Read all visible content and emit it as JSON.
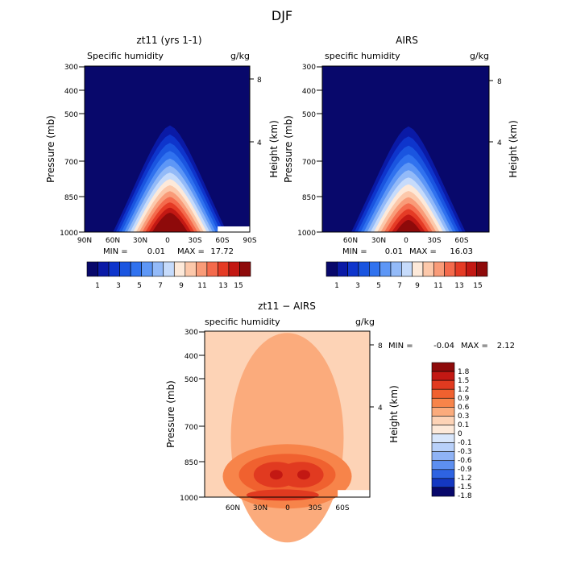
{
  "figure_title": "DJF",
  "minmax_labels": {
    "min": "MIN =",
    "max": "MAX ="
  },
  "chart_data": [
    {
      "type": "heatmap",
      "title": "zt11 (yrs 1-1)",
      "subtitle_left": "Specific humidity",
      "subtitle_right": "g/kg",
      "ylabel": "Pressure (mb)",
      "y2label": "Height (km)",
      "yticks": [
        "300",
        "400",
        "500",
        "700",
        "850",
        "1000"
      ],
      "y2ticks": [
        "8",
        "4"
      ],
      "xticks": [
        "90N",
        "60N",
        "30N",
        "0",
        "30S",
        "60S",
        "90S"
      ],
      "xlim": [
        90,
        -90
      ],
      "min": "0.01",
      "max": "17.72",
      "colorbar_labels": [
        "1",
        "3",
        "5",
        "7",
        "9",
        "11",
        "13",
        "15"
      ],
      "surface_mask": [
        [
          -55,
          960
        ],
        [
          -90,
          960
        ]
      ],
      "peak": 17.7
    },
    {
      "type": "heatmap",
      "title": "AIRS",
      "subtitle_left": "specific humidity",
      "subtitle_right": "g/kg",
      "ylabel": "Pressure (mb)",
      "y2label": "Height (km)",
      "yticks": [
        "300",
        "400",
        "500",
        "700",
        "850",
        "1000"
      ],
      "y2ticks": [
        "8",
        "4"
      ],
      "xticks": [
        "60N",
        "30N",
        "0",
        "30S",
        "60S"
      ],
      "xlim": [
        90,
        -90
      ],
      "min": "0.01",
      "max": "16.03",
      "colorbar_labels": [
        "1",
        "3",
        "5",
        "7",
        "9",
        "11",
        "13",
        "15"
      ],
      "peak": 16.0
    },
    {
      "type": "heatmap",
      "title": "zt11 − AIRS",
      "subtitle_left": "specific humidity",
      "subtitle_right": "g/kg",
      "ylabel": "Pressure (mb)",
      "y2label": "Height (km)",
      "yticks": [
        "300",
        "400",
        "500",
        "700",
        "850",
        "1000"
      ],
      "y2ticks": [
        "8",
        "4"
      ],
      "xticks": [
        "60N",
        "30N",
        "0",
        "30S",
        "60S"
      ],
      "xlim": [
        90,
        -90
      ],
      "min": "-0.04",
      "max": "2.12",
      "colorbar_labels": [
        "1.8",
        "1.5",
        "1.2",
        "0.9",
        "0.6",
        "0.3",
        "0.1",
        "0",
        "-0.1",
        "-0.3",
        "-0.6",
        "-0.9",
        "-1.2",
        "-1.5",
        "-1.8"
      ]
    }
  ],
  "colors": {
    "abs_scale": [
      "#08086b",
      "#0a1aa6",
      "#0e35cc",
      "#1a55e0",
      "#3072ef",
      "#5e97f6",
      "#93baf8",
      "#c6dbfb",
      "#fde9d9",
      "#fcc8aa",
      "#f99b78",
      "#f46a4c",
      "#e53b25",
      "#c31813",
      "#8e0a0a"
    ],
    "diff_scale": [
      "#8e0a0a",
      "#c31813",
      "#e13a20",
      "#f0612f",
      "#f7844a",
      "#fbab7c",
      "#fdd3b6",
      "#fde9d9",
      "#d8e6fb",
      "#b8d0f9",
      "#8fb3f6",
      "#5d8ff0",
      "#2e63e2",
      "#1438c2",
      "#08086b"
    ]
  }
}
